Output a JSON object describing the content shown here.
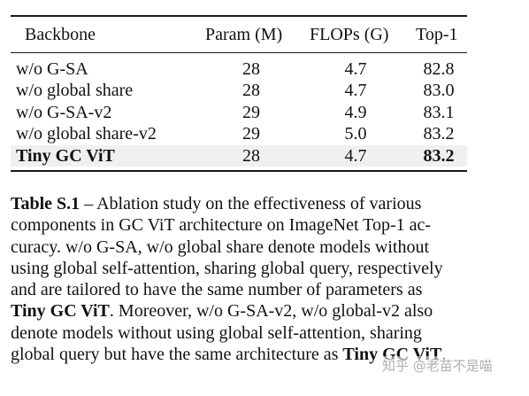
{
  "table": {
    "columns": [
      "Backbone",
      "Param (M)",
      "FLOPs (G)",
      "Top-1"
    ],
    "rows": [
      {
        "backbone": "w/o G-SA",
        "params": "28",
        "flops": "4.7",
        "top1": "82.8"
      },
      {
        "backbone": "w/o global share",
        "params": "28",
        "flops": "4.7",
        "top1": "83.0"
      },
      {
        "backbone": "w/o G-SA-v2",
        "params": "29",
        "flops": "4.9",
        "top1": "83.1"
      },
      {
        "backbone": "w/o global share-v2",
        "params": "29",
        "flops": "5.0",
        "top1": "83.2"
      },
      {
        "backbone": "Tiny GC ViT",
        "params": "28",
        "flops": "4.7",
        "top1": "83.2"
      }
    ],
    "highlight_color": "#f0f0f0"
  },
  "caption": {
    "label": "Table S.1",
    "text": [
      "– Ablation study on the effectiveness of various",
      "components in GC ViT architecture on ImageNet Top-1 ac-",
      "curacy. w/o G-SA, w/o global share denote models without",
      "using global self-attention, sharing global query, respectively",
      "and are tailored to have the same number of parameters as",
      "Tiny GC ViT",
      ". Moreover, w/o G-SA-v2, w/o global-v2 also",
      "denote models without using global self-attention, sharing",
      "global query but have the same architecture as",
      "Tiny GC ViT",
      "."
    ]
  },
  "watermark": "知乎 @老苗不是喵"
}
